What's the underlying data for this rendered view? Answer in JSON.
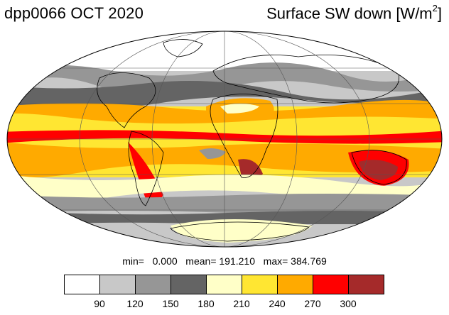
{
  "header": {
    "title_left": "dpp0066 OCT 2020",
    "title_right_main": "Surface SW down [W/m",
    "title_right_sup": "2",
    "title_right_end": "]"
  },
  "stats": {
    "text": "min=   0.000   mean= 191.210   max= 384.769"
  },
  "legend": {
    "colors": [
      "#ffffff",
      "#c8c8c8",
      "#969696",
      "#646464",
      "#ffffc8",
      "#ffe632",
      "#ffaa00",
      "#ff0000",
      "#a52a2a"
    ],
    "ticks": [
      "90",
      "120",
      "150",
      "180",
      "210",
      "240",
      "270",
      "300"
    ]
  },
  "map_style": {
    "gray_light": "#c8c8c8",
    "gray_mid": "#969696",
    "gray_dark": "#646464",
    "white": "#ffffff",
    "pale_yellow": "#ffffc8",
    "yellow": "#ffe632",
    "orange": "#ffaa00",
    "red": "#ff0000",
    "dark_red": "#a52a2a"
  }
}
